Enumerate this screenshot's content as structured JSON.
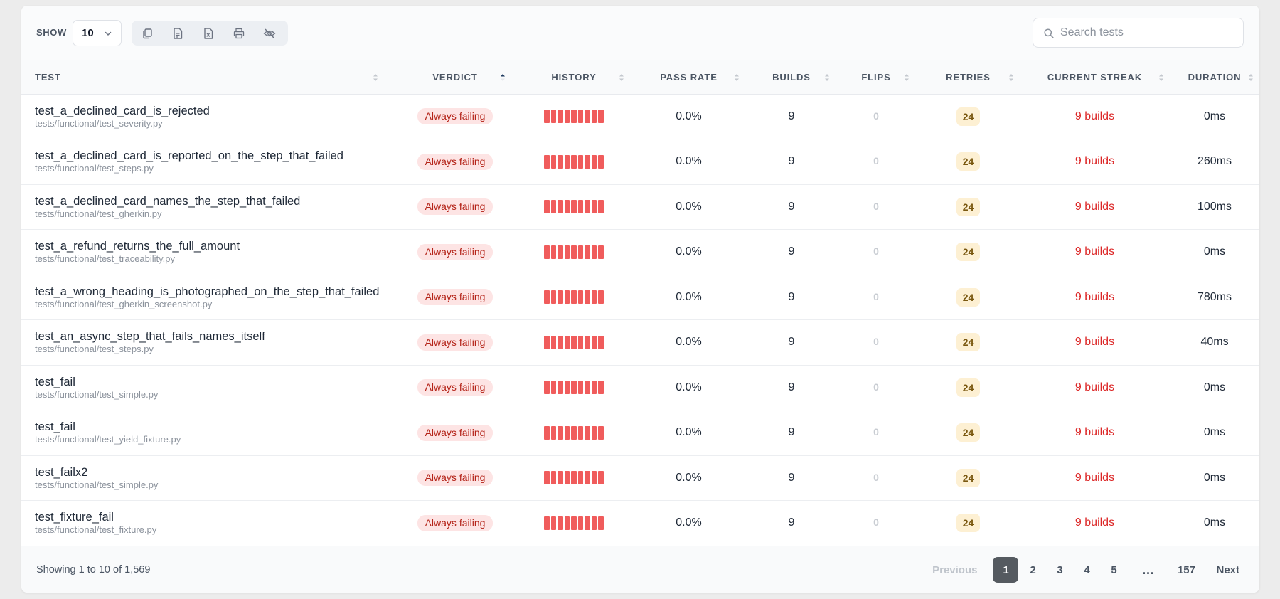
{
  "toolbar": {
    "show_label": "SHOW",
    "page_size": "10",
    "tools": [
      {
        "icon": "copy-icon",
        "name": "copy"
      },
      {
        "icon": "csv-icon",
        "name": "csv"
      },
      {
        "icon": "excel-icon",
        "name": "excel"
      },
      {
        "icon": "print-icon",
        "name": "print"
      },
      {
        "icon": "eye-off-icon",
        "name": "column-visibility"
      }
    ],
    "search_placeholder": "Search tests",
    "search_value": ""
  },
  "table": {
    "columns": [
      {
        "key": "test",
        "label": "TEST",
        "sort": "none"
      },
      {
        "key": "verdict",
        "label": "VERDICT",
        "sort": "asc"
      },
      {
        "key": "history",
        "label": "HISTORY",
        "sort": "none"
      },
      {
        "key": "pass_rate",
        "label": "PASS RATE",
        "sort": "none"
      },
      {
        "key": "builds",
        "label": "BUILDS",
        "sort": "none"
      },
      {
        "key": "flips",
        "label": "FLIPS",
        "sort": "none"
      },
      {
        "key": "retries",
        "label": "RETRIES",
        "sort": "none"
      },
      {
        "key": "current_streak",
        "label": "CURRENT STREAK",
        "sort": "none"
      },
      {
        "key": "duration",
        "label": "DURATION",
        "sort": "none"
      }
    ],
    "rows": [
      {
        "name": "test_a_declined_card_is_rejected",
        "path": "tests/functional/test_severity.py",
        "verdict": "Always failing",
        "history": [
          "fail",
          "fail",
          "fail",
          "fail",
          "fail",
          "fail",
          "fail",
          "fail",
          "fail"
        ],
        "pass_rate": "0.0%",
        "builds": "9",
        "flips": "0",
        "retries": "24",
        "streak": "9 builds",
        "duration": "0ms"
      },
      {
        "name": "test_a_declined_card_is_reported_on_the_step_that_failed",
        "path": "tests/functional/test_steps.py",
        "verdict": "Always failing",
        "history": [
          "fail",
          "fail",
          "fail",
          "fail",
          "fail",
          "fail",
          "fail",
          "fail",
          "fail"
        ],
        "pass_rate": "0.0%",
        "builds": "9",
        "flips": "0",
        "retries": "24",
        "streak": "9 builds",
        "duration": "260ms"
      },
      {
        "name": "test_a_declined_card_names_the_step_that_failed",
        "path": "tests/functional/test_gherkin.py",
        "verdict": "Always failing",
        "history": [
          "fail",
          "fail",
          "fail",
          "fail",
          "fail",
          "fail",
          "fail",
          "fail",
          "fail"
        ],
        "pass_rate": "0.0%",
        "builds": "9",
        "flips": "0",
        "retries": "24",
        "streak": "9 builds",
        "duration": "100ms"
      },
      {
        "name": "test_a_refund_returns_the_full_amount",
        "path": "tests/functional/test_traceability.py",
        "verdict": "Always failing",
        "history": [
          "fail",
          "fail",
          "fail",
          "fail",
          "fail",
          "fail",
          "fail",
          "fail",
          "fail"
        ],
        "pass_rate": "0.0%",
        "builds": "9",
        "flips": "0",
        "retries": "24",
        "streak": "9 builds",
        "duration": "0ms"
      },
      {
        "name": "test_a_wrong_heading_is_photographed_on_the_step_that_failed",
        "path": "tests/functional/test_gherkin_screenshot.py",
        "verdict": "Always failing",
        "history": [
          "fail",
          "fail",
          "fail",
          "fail",
          "fail",
          "fail",
          "fail",
          "fail",
          "fail"
        ],
        "pass_rate": "0.0%",
        "builds": "9",
        "flips": "0",
        "retries": "24",
        "streak": "9 builds",
        "duration": "780ms"
      },
      {
        "name": "test_an_async_step_that_fails_names_itself",
        "path": "tests/functional/test_steps.py",
        "verdict": "Always failing",
        "history": [
          "fail",
          "fail",
          "fail",
          "fail",
          "fail",
          "fail",
          "fail",
          "fail",
          "fail"
        ],
        "pass_rate": "0.0%",
        "builds": "9",
        "flips": "0",
        "retries": "24",
        "streak": "9 builds",
        "duration": "40ms"
      },
      {
        "name": "test_fail",
        "path": "tests/functional/test_simple.py",
        "verdict": "Always failing",
        "history": [
          "fail",
          "fail",
          "fail",
          "fail",
          "fail",
          "fail",
          "fail",
          "fail",
          "fail"
        ],
        "pass_rate": "0.0%",
        "builds": "9",
        "flips": "0",
        "retries": "24",
        "streak": "9 builds",
        "duration": "0ms"
      },
      {
        "name": "test_fail",
        "path": "tests/functional/test_yield_fixture.py",
        "verdict": "Always failing",
        "history": [
          "fail",
          "fail",
          "fail",
          "fail",
          "fail",
          "fail",
          "fail",
          "fail",
          "fail"
        ],
        "pass_rate": "0.0%",
        "builds": "9",
        "flips": "0",
        "retries": "24",
        "streak": "9 builds",
        "duration": "0ms"
      },
      {
        "name": "test_failx2",
        "path": "tests/functional/test_simple.py",
        "verdict": "Always failing",
        "history": [
          "fail",
          "fail",
          "fail",
          "fail",
          "fail",
          "fail",
          "fail",
          "fail",
          "fail"
        ],
        "pass_rate": "0.0%",
        "builds": "9",
        "flips": "0",
        "retries": "24",
        "streak": "9 builds",
        "duration": "0ms"
      },
      {
        "name": "test_fixture_fail",
        "path": "tests/functional/test_fixture.py",
        "verdict": "Always failing",
        "history": [
          "fail",
          "fail",
          "fail",
          "fail",
          "fail",
          "fail",
          "fail",
          "fail",
          "fail"
        ],
        "pass_rate": "0.0%",
        "builds": "9",
        "flips": "0",
        "retries": "24",
        "streak": "9 builds",
        "duration": "0ms"
      }
    ]
  },
  "footer": {
    "showing_text": "Showing 1 to 10 of 1,569",
    "pagination": {
      "previous": "Previous",
      "pages": [
        "1",
        "2",
        "3",
        "4",
        "5"
      ],
      "ellipsis": "…",
      "last_page": "157",
      "next": "Next",
      "active_page": "1"
    }
  },
  "colors": {
    "fail_bar": "#f05c5c",
    "verdict_bg": "#fde4e4",
    "verdict_text": "#b42318",
    "streak_text": "#dc2626",
    "retries_bg": "#fdf0d3",
    "active_page_bg": "#555a60"
  }
}
